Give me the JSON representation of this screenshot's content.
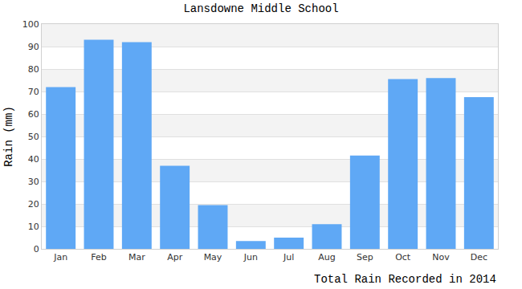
{
  "chart_data": {
    "type": "bar",
    "title": "Lansdowne Middle School",
    "xlabel": "Total Rain Recorded in 2014",
    "ylabel": "Rain (mm)",
    "categories": [
      "Jan",
      "Feb",
      "Mar",
      "Apr",
      "May",
      "Jun",
      "Jul",
      "Aug",
      "Sep",
      "Oct",
      "Nov",
      "Dec"
    ],
    "values": [
      72,
      93,
      92,
      37,
      19.5,
      3.5,
      5,
      11,
      41.5,
      75.5,
      76,
      67.5
    ],
    "color": "#5fa8f5",
    "ylim": [
      0,
      100
    ],
    "yticks": [
      0,
      10,
      20,
      30,
      40,
      50,
      60,
      70,
      80,
      90,
      100
    ],
    "grid": true
  }
}
